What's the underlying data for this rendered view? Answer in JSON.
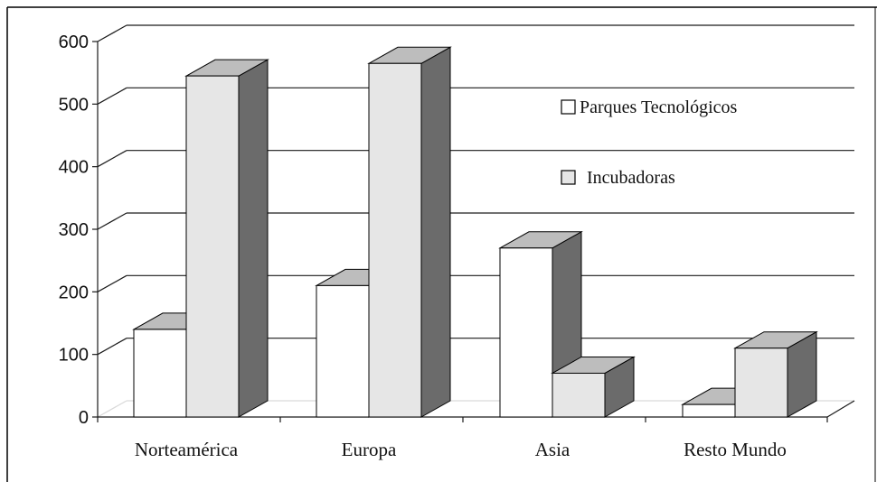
{
  "chart_data": {
    "type": "bar",
    "title": "",
    "xlabel": "",
    "ylabel": "",
    "categories": [
      "Norteamérica",
      "Europa",
      "Asia",
      "Resto Mundo"
    ],
    "series": [
      {
        "name": "Parques Tecnológicos",
        "values": [
          140,
          210,
          270,
          20
        ]
      },
      {
        "name": "Incubadoras",
        "values": [
          545,
          565,
          70,
          110
        ]
      }
    ],
    "ylim": [
      0,
      600
    ],
    "yticks": [
      0,
      100,
      200,
      300,
      400,
      500,
      600
    ],
    "grid": true,
    "legend_position": "top-right",
    "colors": {
      "series1_face": "#ffffff",
      "series2_face": "#e6e6e6",
      "top": "#bdbdbd",
      "side": "#6b6b6b",
      "edge": "#000000",
      "grid": "#1a1a1a"
    }
  }
}
